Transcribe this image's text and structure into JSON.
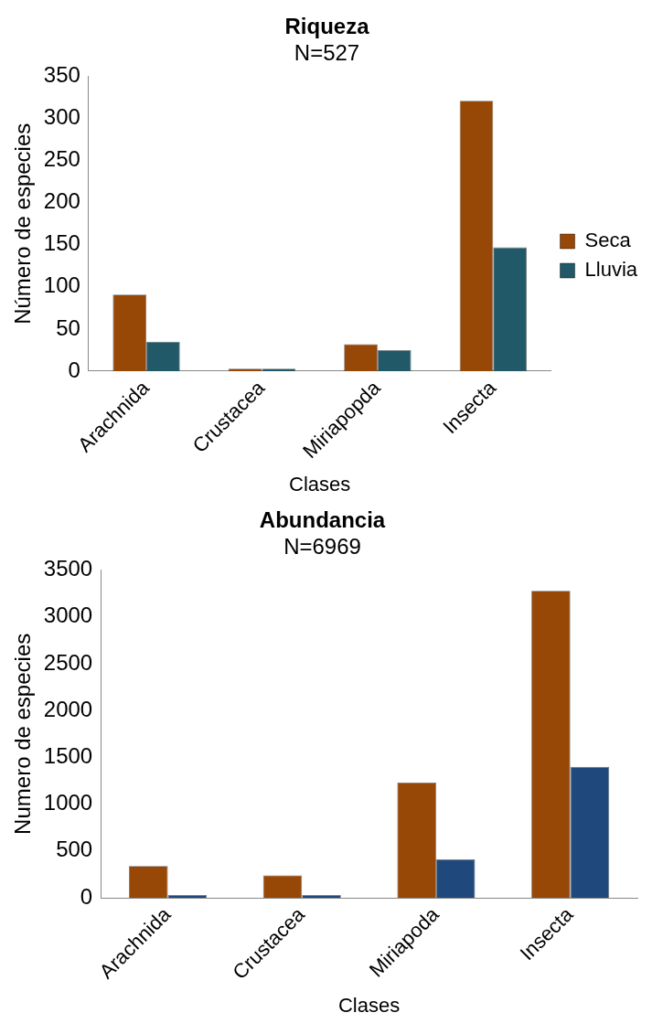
{
  "chart_data": [
    {
      "type": "bar",
      "title": "Riqueza",
      "subtitle": "N=527",
      "xlabel": "Clases",
      "ylabel": "Número de especies",
      "categories": [
        "Arachnida",
        "Crustacea",
        "Miriapopda",
        "Insecta"
      ],
      "series": [
        {
          "name": "Seca",
          "color": "#974706",
          "values": [
            91,
            3,
            32,
            321
          ]
        },
        {
          "name": "Lluvia",
          "color": "#215968",
          "values": [
            35,
            3,
            25,
            147
          ]
        }
      ],
      "ylim": [
        0,
        350
      ],
      "yticks": [
        0,
        50,
        100,
        150,
        200,
        250,
        300,
        350
      ],
      "grid": false,
      "legend": "right"
    },
    {
      "type": "bar",
      "title": "Abundancia",
      "subtitle": "N=6969",
      "xlabel": "Clases",
      "ylabel": "Numero de especies",
      "categories": [
        "Arachnida",
        "Crustacea",
        "Miriapoda",
        "Insecta"
      ],
      "series": [
        {
          "color": "#974706",
          "values": [
            340,
            240,
            1230,
            3280
          ]
        },
        {
          "color": "#1f497d",
          "values": [
            30,
            30,
            410,
            1400
          ]
        }
      ],
      "ylim": [
        0,
        3500
      ],
      "yticks": [
        0,
        500,
        1000,
        1500,
        2000,
        2500,
        3000,
        3500
      ],
      "grid": false
    }
  ]
}
